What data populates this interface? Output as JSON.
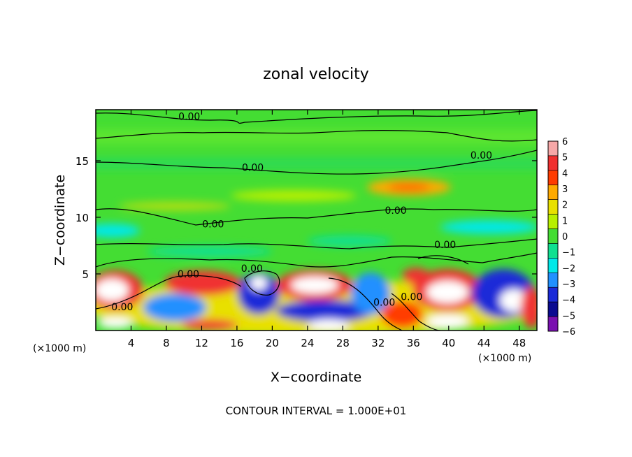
{
  "chart_data": {
    "type": "heatmap",
    "title": "zonal velocity",
    "xlabel": "X−coordinate",
    "ylabel": "Z−coordinate",
    "x_unit_left": "(×1000 m)",
    "x_unit_right": "(×1000 m)",
    "footer": "CONTOUR INTERVAL = 1.000E+01",
    "xlim": [
      0,
      50
    ],
    "ylim": [
      0,
      19.5
    ],
    "x_ticks": [
      "4",
      "8",
      "12",
      "16",
      "20",
      "24",
      "28",
      "32",
      "36",
      "40",
      "44",
      "48"
    ],
    "y_ticks": [
      "5",
      "10",
      "15"
    ],
    "colorbar": {
      "range": [
        -6,
        6
      ],
      "labels": [
        "6",
        "5",
        "4",
        "3",
        "2",
        "1",
        "0",
        "−1",
        "−2",
        "−3",
        "−4",
        "−5",
        "−6"
      ],
      "colors": [
        "#f7a8a8",
        "#f03030",
        "#ff3c00",
        "#ffaa00",
        "#e8e000",
        "#b8f000",
        "#44dd33",
        "#10e090",
        "#00e8e8",
        "#2090ff",
        "#1a2ad8",
        "#0a0a90",
        "#7a10b0"
      ]
    },
    "contour_label": "0.00",
    "contour_labels": [
      {
        "text": "0.00",
        "x": 10.6,
        "y": 18.9
      },
      {
        "text": "0.00",
        "x": 17.8,
        "y": 14.4
      },
      {
        "text": "0.00",
        "x": 43.7,
        "y": 15.5
      },
      {
        "text": "0.00",
        "x": 34.0,
        "y": 10.6
      },
      {
        "text": "0.00",
        "x": 13.3,
        "y": 9.4
      },
      {
        "text": "0.00",
        "x": 39.6,
        "y": 7.6
      },
      {
        "text": "0.00",
        "x": 17.7,
        "y": 5.5
      },
      {
        "text": "0.00",
        "x": 10.5,
        "y": 5.0
      },
      {
        "text": "0.00",
        "x": 3.0,
        "y": 2.1
      },
      {
        "text": "0.00",
        "x": 32.7,
        "y": 2.5
      },
      {
        "text": "0.00",
        "x": 35.8,
        "y": 3.0
      }
    ]
  }
}
